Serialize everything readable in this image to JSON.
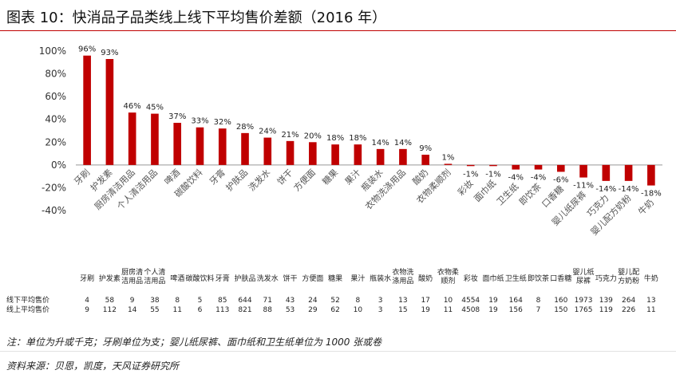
{
  "title": "图表 10：快消品子品类线上线下平均售价差额（2016 年）",
  "note": "注：单位为升或千克；牙刷单位为支；婴儿纸尿裤、面巾纸和卫生纸单位为 1000 张或卷",
  "source": "资料来源：贝恩，凯度，天风证券研究所",
  "colors": {
    "bar": "#c00000",
    "grid": "#d9d9d9",
    "axis": "#999999"
  },
  "chart_data": {
    "type": "bar",
    "categories": [
      "牙刷",
      "护发素",
      "厨房清洁用品",
      "个人清洁用品",
      "啤酒",
      "碳酸饮料",
      "牙膏",
      "护肤品",
      "洗发水",
      "饼干",
      "方便面",
      "糖果",
      "果汁",
      "瓶装水",
      "衣物洗涤用品",
      "酸奶",
      "衣物柔顺剂",
      "彩妆",
      "面巾纸",
      "卫生纸",
      "即饮茶",
      "口香糖",
      "婴儿纸尿裤",
      "巧克力",
      "婴儿配方奶粉",
      "牛奶"
    ],
    "values": [
      96,
      93,
      46,
      45,
      37,
      33,
      32,
      28,
      24,
      21,
      20,
      18,
      18,
      14,
      14,
      9,
      1,
      -1,
      -1,
      -4,
      -4,
      -6,
      -11,
      -14,
      -14,
      -18
    ],
    "data_labels": [
      "96%",
      "93%",
      "46%",
      "45%",
      "37%",
      "33%",
      "32%",
      "28%",
      "24%",
      "21%",
      "20%",
      "18%",
      "18%",
      "14%",
      "14%",
      "9%",
      "1%",
      "-1%",
      "-1%",
      "-4%",
      "-4%",
      "-6%",
      "-11%",
      "-14%",
      "-14%",
      "-18%"
    ],
    "ylim": [
      -40,
      100
    ],
    "yticks": [
      "100%",
      "80%",
      "60%",
      "40%",
      "20%",
      "0%",
      "-20%",
      "-40%"
    ],
    "grid": false,
    "table": {
      "header": [
        "牙刷",
        "护发素",
        "厨房清洁用品",
        "个人清洁用品",
        "啤酒",
        "碳酸饮料",
        "牙膏",
        "护肤品",
        "洗发水",
        "饼干",
        "方便面",
        "糖果",
        "果汁",
        "瓶装水",
        "衣物洗涤用品",
        "酸奶",
        "衣物柔顺剂",
        "彩妆",
        "面巾纸",
        "卫生纸",
        "即饮茶",
        "口香糖",
        "婴儿纸尿裤",
        "巧克力",
        "婴儿配方奶粉",
        "牛奶"
      ],
      "rows": [
        {
          "label": "线下平均售价",
          "values": [
            "4",
            "58",
            "9",
            "38",
            "8",
            "5",
            "85",
            "644",
            "71",
            "43",
            "24",
            "52",
            "8",
            "3",
            "13",
            "17",
            "10",
            "4554",
            "19",
            "164",
            "8",
            "160",
            "1973",
            "139",
            "264",
            "13"
          ]
        },
        {
          "label": "线上平均售价",
          "values": [
            "9",
            "112",
            "14",
            "55",
            "11",
            "6",
            "113",
            "821",
            "88",
            "53",
            "29",
            "62",
            "10",
            "3",
            "15",
            "19",
            "11",
            "4508",
            "19",
            "156",
            "7",
            "150",
            "1765",
            "119",
            "226",
            "11"
          ]
        }
      ]
    }
  }
}
